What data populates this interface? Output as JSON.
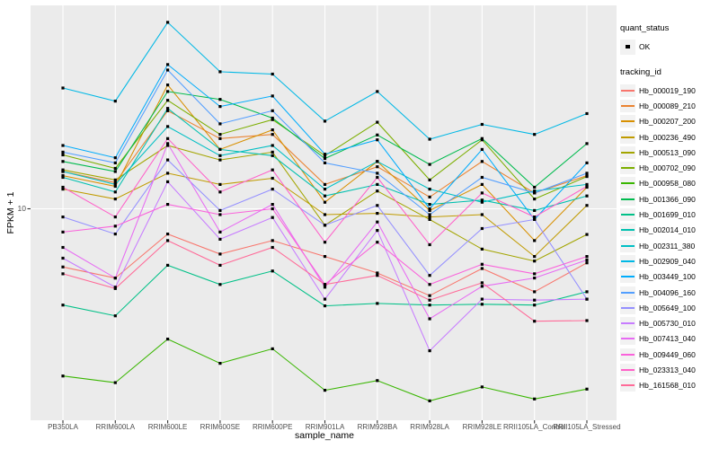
{
  "chart_data": {
    "type": "line",
    "title": "",
    "xlabel": "sample_name",
    "ylabel": "FPKM + 1",
    "yscale": "log10",
    "ytick_labels": [
      "10"
    ],
    "ylim_approx": [
      1.8,
      52
    ],
    "grid": "major-only",
    "legend_position": "right",
    "categories": [
      "PB350LA",
      "RRIM600LA",
      "RRIM600LE",
      "RRIM600SE",
      "RRIM600PE",
      "RRIM901LA",
      "RRIM928BA",
      "RRIM928LA",
      "RRIM928LE",
      "RRII105LA_Control",
      "RRII105LA_Stressed"
    ],
    "series": [
      {
        "name": "Hb_000019_190",
        "color": "#F8766D",
        "values": [
          5.98,
          5.42,
          8.0,
          6.7,
          7.55,
          6.56,
          5.67,
          4.64,
          5.9,
          4.8,
          6.2
        ]
      },
      {
        "name": "Hb_000089_210",
        "color": "#EA8331",
        "values": [
          13.9,
          12.6,
          23.8,
          18.6,
          19.3,
          12.4,
          14.5,
          11.1,
          15.2,
          11.5,
          13.4
        ]
      },
      {
        "name": "Hb_000207_200",
        "color": "#D89000",
        "values": [
          13.4,
          12.2,
          29.9,
          16.9,
          20.1,
          10.6,
          15.2,
          9.85,
          12.4,
          7.55,
          12.1
        ]
      },
      {
        "name": "Hb_000236_490",
        "color": "#C09B00",
        "values": [
          11.9,
          10.9,
          13.7,
          12.4,
          13.1,
          9.5,
          9.6,
          9.3,
          9.5,
          6.56,
          10.3
        ]
      },
      {
        "name": "Hb_000513_090",
        "color": "#A3A500",
        "values": [
          14.1,
          12.9,
          17.5,
          15.4,
          16.5,
          8.65,
          11.7,
          9.1,
          7.0,
          6.3,
          7.97
        ]
      },
      {
        "name": "Hb_000702_090",
        "color": "#7CAE00",
        "values": [
          16.1,
          14.3,
          26.1,
          19.3,
          22.0,
          16.0,
          21.5,
          12.9,
          18.4,
          10.9,
          13.3
        ]
      },
      {
        "name": "Hb_000958_080",
        "color": "#39B600",
        "values": [
          2.28,
          2.15,
          3.16,
          2.55,
          2.9,
          2.01,
          2.19,
          1.83,
          2.07,
          1.86,
          2.03
        ]
      },
      {
        "name": "Hb_001366_090",
        "color": "#00BB4E",
        "values": [
          15.2,
          13.9,
          28.2,
          26.3,
          22.3,
          15.6,
          19.2,
          14.8,
          18.6,
          12.1,
          17.8
        ]
      },
      {
        "name": "Hb_001699_010",
        "color": "#00C087",
        "values": [
          4.27,
          3.88,
          6.07,
          5.12,
          5.77,
          4.24,
          4.33,
          4.27,
          4.3,
          4.27,
          4.8
        ]
      },
      {
        "name": "Hb_002014_010",
        "color": "#00C0AF",
        "values": [
          13.2,
          11.6,
          24.3,
          16.9,
          16.0,
          11.2,
          12.4,
          10.4,
          10.8,
          9.85,
          11.2
        ]
      },
      {
        "name": "Hb_002311_380",
        "color": "#00BFC4",
        "values": [
          13.9,
          12.4,
          20.7,
          16.0,
          17.5,
          11.9,
          15.2,
          11.9,
          10.6,
          11.7,
          12.4
        ]
      },
      {
        "name": "Hb_002909_040",
        "color": "#00B8E5",
        "values": [
          29.1,
          25.9,
          52.0,
          33.6,
          32.9,
          21.7,
          28.2,
          18.5,
          21.1,
          19.3,
          23.2
        ]
      },
      {
        "name": "Hb_003449_100",
        "color": "#00ACFC",
        "values": [
          17.5,
          15.7,
          35.8,
          24.7,
          27.1,
          16.2,
          18.4,
          10.0,
          16.9,
          9.1,
          15.0
        ]
      },
      {
        "name": "Hb_004096_160",
        "color": "#529EFF",
        "values": [
          16.5,
          15.0,
          34.1,
          21.2,
          23.8,
          15.0,
          13.7,
          9.5,
          13.2,
          11.5,
          13.7
        ]
      },
      {
        "name": "Hb_005649_100",
        "color": "#9590FF",
        "values": [
          9.3,
          8.0,
          15.4,
          9.85,
          11.9,
          8.65,
          10.3,
          5.55,
          8.4,
          9.1,
          4.5
        ]
      },
      {
        "name": "Hb_005730_010",
        "color": "#C77CFF",
        "values": [
          6.46,
          5.0,
          12.7,
          7.64,
          9.26,
          4.5,
          8.26,
          2.85,
          4.5,
          4.46,
          4.5
        ]
      },
      {
        "name": "Hb_007413_040",
        "color": "#E76BF3",
        "values": [
          7.11,
          5.42,
          17.8,
          8.14,
          10.4,
          5.0,
          8.9,
          3.78,
          5.04,
          5.42,
          6.36
        ]
      },
      {
        "name": "Hb_009449_060",
        "color": "#FA62DB",
        "values": [
          8.14,
          8.58,
          10.4,
          9.5,
          10.0,
          5.12,
          7.44,
          5.12,
          6.12,
          5.63,
          6.56
        ]
      },
      {
        "name": "Hb_023313_040",
        "color": "#FF61C9",
        "values": [
          12.1,
          9.3,
          18.6,
          11.6,
          14.1,
          7.44,
          13.2,
          7.28,
          11.5,
          9.3,
          12.2
        ]
      },
      {
        "name": "Hb_161568_010",
        "color": "#FF6A98",
        "values": [
          5.63,
          4.94,
          7.55,
          6.07,
          7.11,
          5.12,
          5.55,
          4.46,
          5.2,
          3.7,
          3.72
        ]
      }
    ],
    "legend": {
      "quant_status_title": "quant_status",
      "quant_status_items": [
        "OK"
      ],
      "tracking_title": "tracking_id"
    },
    "layout": {
      "plot_bg": "#FFFFFF",
      "panel_bg": "#EBEBEB",
      "grid_color": "#FFFFFF",
      "axis_text_color": "#4D4D4D",
      "tick_color": "#333333",
      "point_color": "#000000",
      "legend_key_bg": "#F2F2F2"
    }
  }
}
